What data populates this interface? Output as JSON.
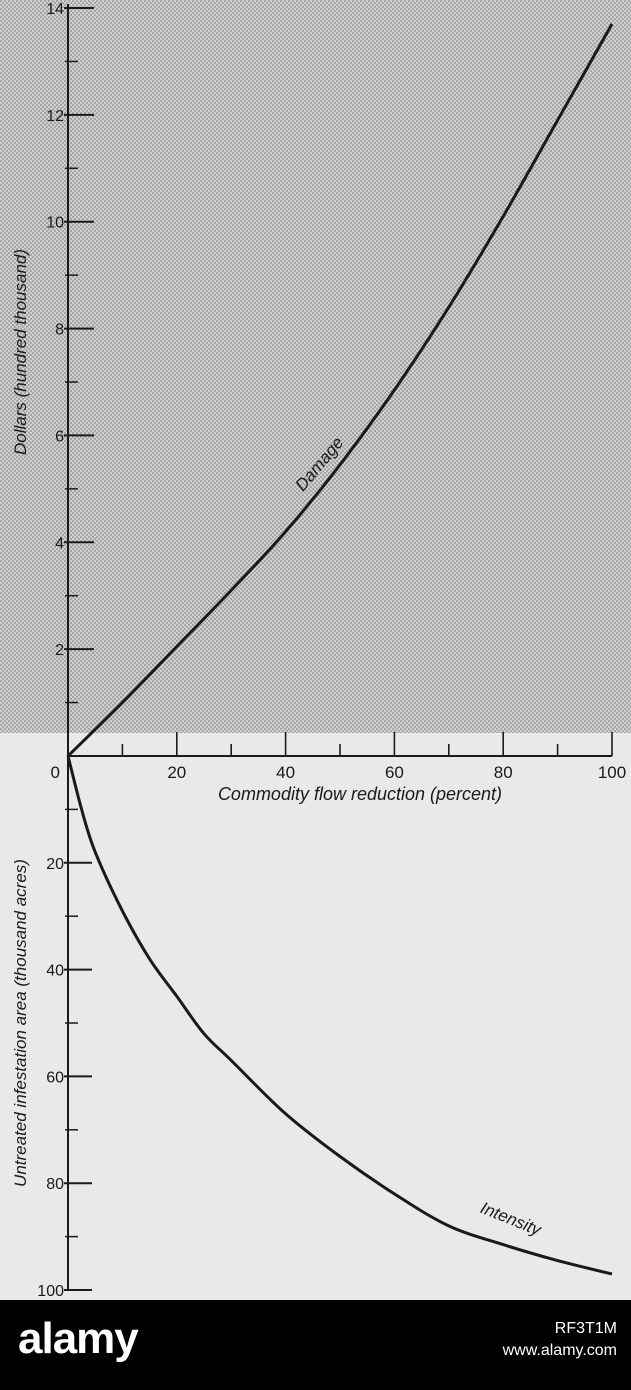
{
  "chart_data": [
    {
      "type": "line",
      "xlabel": "Commodity flow reduction (percent)",
      "ylabel": "Dollars (hundred thousand)",
      "xlim": [
        0,
        100
      ],
      "ylim": [
        0,
        14
      ],
      "x_ticks": [
        "0",
        "20",
        "40",
        "60",
        "80",
        "100"
      ],
      "y_ticks": [
        "2",
        "4",
        "6",
        "8",
        "10",
        "12",
        "14"
      ],
      "grid": false,
      "background": "stippled gray",
      "series": [
        {
          "name": "Damage",
          "x": [
            0,
            10,
            20,
            30,
            40,
            50,
            60,
            70,
            80,
            90,
            100
          ],
          "y": [
            0,
            1.0,
            2.05,
            3.1,
            4.2,
            5.45,
            6.85,
            8.4,
            10.1,
            11.9,
            13.7
          ]
        }
      ]
    },
    {
      "type": "line",
      "xlabel": "",
      "ylabel": "Untreated infestation area (thousand acres)",
      "xlim": [
        0,
        100
      ],
      "ylim": [
        0,
        100
      ],
      "y_inverted": true,
      "y_ticks": [
        "20",
        "40",
        "60",
        "80",
        "100"
      ],
      "grid": false,
      "series": [
        {
          "name": "Intensity",
          "x": [
            0,
            2.5,
            5,
            10,
            15,
            20,
            25,
            30,
            40,
            50,
            60,
            70,
            80,
            90,
            100
          ],
          "y": [
            0,
            10,
            18,
            29,
            38,
            45,
            52,
            57,
            67,
            75,
            82,
            88,
            91.5,
            94.5,
            97
          ]
        }
      ]
    }
  ],
  "colors": {
    "background": "#e6e6e6",
    "line": "#1a1a1a",
    "footer": "#000000"
  },
  "footer": {
    "logo": "alamy",
    "image_id": "RF3T1M",
    "site": "www.alamy.com"
  }
}
